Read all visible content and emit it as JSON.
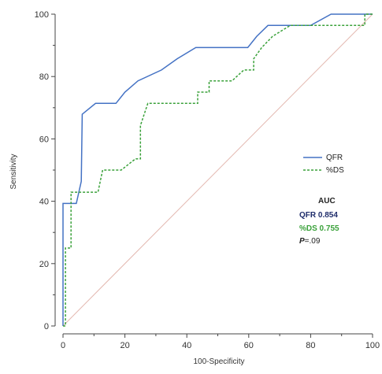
{
  "chart_data": {
    "type": "line",
    "title": "",
    "xlabel": "100-Specificity",
    "ylabel": "Sensitivity",
    "xlim": [
      0,
      100
    ],
    "ylim": [
      0,
      100
    ],
    "x_ticks": [
      "0",
      "20",
      "40",
      "60",
      "80",
      "100"
    ],
    "y_ticks": [
      "0",
      "20",
      "40",
      "60",
      "80",
      "100"
    ],
    "grid": false,
    "legend_position": "right",
    "series": [
      {
        "name": "QFR",
        "color": "#4472c4",
        "style": "solid",
        "points": [
          [
            0,
            0
          ],
          [
            0,
            39.3
          ],
          [
            4.3,
            39.3
          ],
          [
            5.9,
            46.4
          ],
          [
            6.2,
            67.9
          ],
          [
            10.5,
            71.4
          ],
          [
            17.1,
            71.4
          ],
          [
            20,
            75
          ],
          [
            24.2,
            78.6
          ],
          [
            31.8,
            82.1
          ],
          [
            36.9,
            85.7
          ],
          [
            42.9,
            89.3
          ],
          [
            59.7,
            89.3
          ],
          [
            62.6,
            92.9
          ],
          [
            66.2,
            96.4
          ],
          [
            80,
            96.4
          ],
          [
            86.6,
            100
          ],
          [
            100,
            100
          ]
        ]
      },
      {
        "name": "%DS",
        "color": "#3aa13a",
        "style": "dashed",
        "points": [
          [
            0,
            0
          ],
          [
            0.8,
            0
          ],
          [
            0.8,
            25
          ],
          [
            2.6,
            25
          ],
          [
            2.6,
            42.9
          ],
          [
            11.3,
            42.9
          ],
          [
            12.8,
            50
          ],
          [
            18.8,
            50
          ],
          [
            23.4,
            53.6
          ],
          [
            25,
            53.6
          ],
          [
            25,
            64.3
          ],
          [
            27.4,
            71.4
          ],
          [
            43.5,
            71.4
          ],
          [
            43.5,
            75
          ],
          [
            47.2,
            75
          ],
          [
            47.2,
            78.6
          ],
          [
            54.6,
            78.6
          ],
          [
            58.4,
            82.1
          ],
          [
            61.6,
            82.1
          ],
          [
            61.6,
            85.7
          ],
          [
            64.2,
            89.3
          ],
          [
            67.7,
            92.9
          ],
          [
            73.4,
            96.4
          ],
          [
            97.5,
            96.4
          ],
          [
            97.5,
            100
          ],
          [
            100,
            100
          ]
        ]
      }
    ],
    "reference_line": {
      "from": [
        0,
        0
      ],
      "to": [
        100,
        100
      ],
      "color": "#e3b8b0"
    }
  },
  "legend": {
    "items": [
      {
        "label": "QFR",
        "color": "#4472c4",
        "style": "solid"
      },
      {
        "label": "%DS",
        "color": "#3aa13a",
        "style": "dashed"
      }
    ]
  },
  "auc_box": {
    "heading": "AUC",
    "qfr": "QFR  0.854",
    "ds": "%DS  0.755",
    "p_symbol": "P",
    "p_value": "=.09",
    "heading_color": "#222222",
    "qfr_color": "#1f2d6b",
    "ds_color": "#3aa13a",
    "p_color": "#222222"
  }
}
